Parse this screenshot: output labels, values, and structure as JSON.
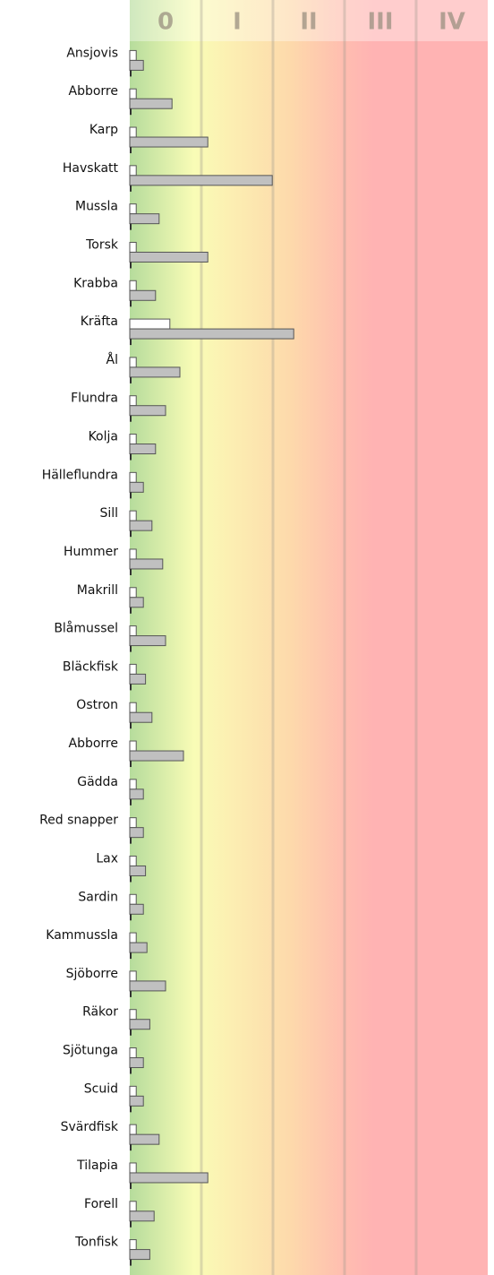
{
  "chart_data": {
    "type": "bar",
    "orientation": "horizontal",
    "bands": [
      "0",
      "I",
      "II",
      "III",
      "IV"
    ],
    "xlim": [
      0,
      5
    ],
    "xticks": [
      1,
      2,
      3,
      4
    ],
    "grid": true,
    "categories": [
      "Ansjovis",
      "Abborre",
      "Karp",
      "Havskatt",
      "Mussla",
      "Torsk",
      "Krabba",
      "Kräfta",
      "Ål",
      "Flundra",
      "Kolja",
      "Hälleflundra",
      "Sill",
      "Hummer",
      "Makrill",
      "Blåmussel",
      "Bläckfisk",
      "Ostron",
      "Abborre",
      "Gädda",
      "Red snapper",
      "Lax",
      "Sardin",
      "Kammussla",
      "Sjöborre",
      "Räkor",
      "Sjötunga",
      "Scuid",
      "Svärdfisk",
      "Tilapia",
      "Forell",
      "Tonfisk"
    ],
    "series": [
      {
        "color": "#ffffff",
        "values": [
          0.09,
          0.09,
          0.09,
          0.09,
          0.09,
          0.09,
          0.09,
          0.56,
          0.09,
          0.09,
          0.09,
          0.09,
          0.09,
          0.09,
          0.09,
          0.09,
          0.09,
          0.09,
          0.09,
          0.09,
          0.09,
          0.09,
          0.09,
          0.09,
          0.09,
          0.09,
          0.09,
          0.09,
          0.09,
          0.09,
          0.09,
          0.09
        ]
      },
      {
        "color": "#c0c0c0",
        "values": [
          0.19,
          0.59,
          1.09,
          1.99,
          0.41,
          1.09,
          0.36,
          2.29,
          0.7,
          0.5,
          0.36,
          0.19,
          0.31,
          0.46,
          0.19,
          0.5,
          0.22,
          0.31,
          0.75,
          0.19,
          0.19,
          0.22,
          0.19,
          0.24,
          0.5,
          0.28,
          0.19,
          0.19,
          0.41,
          1.09,
          0.34,
          0.28
        ]
      }
    ]
  }
}
